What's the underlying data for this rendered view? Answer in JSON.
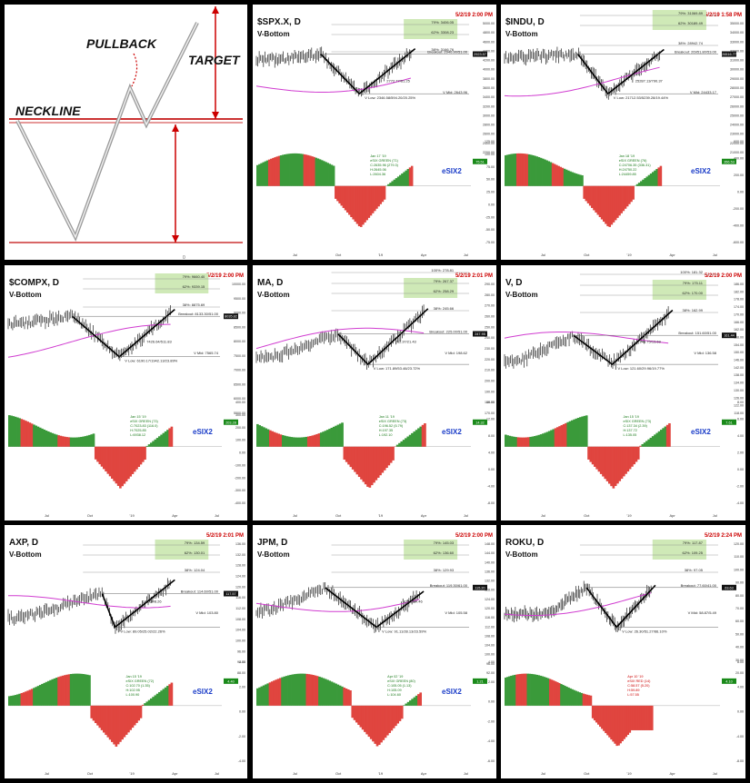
{
  "diagram": {
    "pullback_label": "PULLBACK",
    "neckline_label": "NECKLINE",
    "target_label": "TARGET",
    "bottom_mark": "0"
  },
  "charts": [
    {
      "ticker": "$SPX.X, D",
      "date_stamp": "5/2/19 2:00 PM",
      "pattern": "V-Bottom",
      "osc_label": "eSIX2",
      "levels": {
        "r79": "79%: 3406.05",
        "r62": "62%: 3308.23",
        "r38": "38%: 3166.76",
        "breakout": "Breakout: 2940.90/51.00",
        "l3": "2772.77/61.25",
        "vmid": "V Mid: 2643.96",
        "low": "V Low: 2346.58/594.20/20.25%"
      },
      "note": [
        "Jan 17 '19",
        "eSIX GREEN (71)",
        "C:2635.96 (279.3)",
        "H:2645.06",
        "L:2604.36"
      ],
      "price": "2923.57",
      "price_right": "75.51",
      "yticks": [
        "5000.00",
        "4800.00",
        "4600.00",
        "4400.00",
        "4200.00",
        "4000.00",
        "3800.00",
        "3600.00",
        "3400.00",
        "3200.00",
        "3000.00",
        "2800.00",
        "2600.00",
        "2400.00",
        "2200.00"
      ],
      "osc_ticks": [
        "125.00",
        "100.00",
        "75.00",
        "50.00",
        "25.00",
        "0.00",
        "-25.00",
        "-50.00",
        "-75.00"
      ],
      "xticks": [
        "Jul",
        "Oct",
        "'19",
        "Apr",
        "Jul"
      ]
    },
    {
      "ticker": "$INDU, D",
      "date_stamp": "5/2/19 1:58 PM",
      "pattern": "V-Bottom",
      "osc_label": "eSIX2",
      "levels": {
        "r79": "79%: 31069.89",
        "r62": "62%: 30189.49",
        "r38": "38%: 28942.74",
        "breakout": "Breakout: 26951.80/53.00",
        "l3": "25287.13/790.37",
        "vmid": "V Mid: 24433.17",
        "low": "V Low: 21712.53/5239.28/19.44%"
      },
      "note": [
        "Jan 18 '19",
        "eSIX GREEN (76)",
        "C:24706.35 (336.31)",
        "H:24750.22",
        "L:24459.85"
      ],
      "price": "26516.77",
      "price_right": "356.53",
      "yticks": [
        "35000.00",
        "34000.00",
        "33000.00",
        "32000.00",
        "31000.00",
        "30000.00",
        "29000.00",
        "28000.00",
        "27000.00",
        "26000.00",
        "25000.00",
        "24000.00",
        "23000.00",
        "22000.00",
        "21000.00"
      ],
      "osc_ticks": [
        "600.00",
        "400.00",
        "200.00",
        "0.00",
        "-200.00",
        "-400.00",
        "-600.00"
      ],
      "xticks": [
        "Jul",
        "Oct",
        "'19",
        "Apr",
        "Jul"
      ]
    },
    {
      "ticker": "$COMPX, D",
      "date_stamp": "5/2/19 2:00 PM",
      "pattern": "V-Bottom",
      "osc_label": "eSIX2",
      "levels": {
        "r79": "79%: 9660.40",
        "r62": "62%: 9339.15",
        "r38": "38%: 8875.69",
        "breakout": "Breakout: 8133.30/51.00",
        "l3": "7426.64/511.83",
        "vmid": "V Mid: 7565.74",
        "low": "V Low: 6190.17/1942.13/23.89%"
      },
      "note": [
        "Jan 15 '19",
        "eSIX GREEN (73)",
        "C:7023.83 (116.0)",
        "H:7025.85",
        "L:6938.12"
      ],
      "price": "8035.82",
      "price_right": "203.28",
      "yticks": [
        "10000.00",
        "9500.00",
        "9000.00",
        "8500.00",
        "8000.00",
        "7500.00",
        "7000.00",
        "6500.00",
        "6000.00",
        "5500.00"
      ],
      "osc_ticks": [
        "400.00",
        "300.00",
        "200.00",
        "100.00",
        "0.00",
        "-100.00",
        "-200.00",
        "-300.00",
        "-400.00"
      ],
      "xticks": [
        "Jul",
        "Oct",
        "'19",
        "Apr",
        "Jul"
      ]
    },
    {
      "ticker": "MA, D",
      "date_stamp": "5/2/19 2:01 PM",
      "pattern": "V-Bottom",
      "osc_label": "eSIX2",
      "levels": {
        "r100": "100%: 278.81",
        "r79": "79%: 267.37",
        "r62": "62%: 258.29",
        "r38": "38%: 245.66",
        "breakout": "Breakout: 225.00/51.00",
        "l3": "211.37/21.43",
        "vmid": "V Mid: 198.62",
        "low": "V Low: 171.89/53.46/23.72%"
      },
      "note": [
        "Jan 11 '19",
        "eSIX GREEN (73)",
        "C:196.52 (5.79)",
        "H:197.35",
        "L:192.10"
      ],
      "price": "247.95",
      "price_right": "14.32",
      "yticks": [
        "290.00",
        "280.00",
        "270.00",
        "260.00",
        "250.00",
        "240.00",
        "230.00",
        "220.00",
        "210.00",
        "200.00",
        "190.00",
        "180.00",
        "170.00"
      ],
      "osc_ticks": [
        "16.00",
        "12.00",
        "8.00",
        "4.00",
        "0.00",
        "-4.00",
        "-8.00"
      ],
      "xticks": [
        "Jul",
        "Oct",
        "'19",
        "Apr",
        "Jul"
      ]
    },
    {
      "ticker": "V, D",
      "date_stamp": "5/2/19 2:00 PM",
      "pattern": "V-Bottom",
      "osc_label": "eSIX2",
      "levels": {
        "r100": "100%: 181.32",
        "r79": "79%: 175.11",
        "r62": "62%: 170.00",
        "r38": "38%: 162.99",
        "breakout": "Breakout: 151.60/51.00",
        "l3": "143.75/13.69",
        "vmid": "V Mid: 136.58",
        "low": "V Low: 121.60/29.96/19.77%"
      },
      "note": [
        "Jan 15 '19",
        "eSIX GREEN (73)",
        "C:137.34 (2.39)",
        "H:137.72",
        "L:135.05"
      ],
      "price": "161.44",
      "price_right": "7.61",
      "yticks": [
        "186.00",
        "182.00",
        "178.00",
        "174.00",
        "170.00",
        "166.00",
        "162.00",
        "158.00",
        "154.00",
        "150.00",
        "146.00",
        "142.00",
        "138.00",
        "134.00",
        "130.00",
        "126.00",
        "122.00",
        "118.00"
      ],
      "osc_ticks": [
        "8.00",
        "6.00",
        "4.00",
        "2.00",
        "0.00",
        "-2.00",
        "-4.00"
      ],
      "xticks": [
        "Jul",
        "Oct",
        "'19",
        "Apr",
        "Jul"
      ]
    },
    {
      "ticker": "AXP, D",
      "date_stamp": "5/2/19 2:01 PM",
      "pattern": "V-Bottom",
      "osc_label": "eSIX2",
      "levels": {
        "r79": "79%: 134.59",
        "r62": "62%: 130.01",
        "r38": "38%: 124.04",
        "breakout": "Breakout: 114.60/51.00",
        "l3": "105.69/8.26",
        "vmid": "V Mid: 103.80",
        "low": "V Low: 89.05/25.02/22.26%"
      },
      "note": [
        "Jan 15 '19",
        "eSIX GREEN (72)",
        "C:102.70 (1.35)",
        "H:102.95",
        "L:100.90"
      ],
      "price": "117.57",
      "price_right": "4.40",
      "yticks": [
        "136.00",
        "132.00",
        "128.00",
        "124.00",
        "120.00",
        "116.00",
        "112.00",
        "108.00",
        "104.00",
        "100.00",
        "96.00",
        "92.00",
        "88.00"
      ],
      "osc_ticks": [
        "4.00",
        "2.00",
        "0.00",
        "-2.00",
        "-4.00"
      ],
      "xticks": [
        "Jul",
        "Oct",
        "'19",
        "Apr",
        "Jul"
      ]
    },
    {
      "ticker": "JPM, D",
      "date_stamp": "5/2/19 2:00 PM",
      "pattern": "V-Bottom",
      "osc_label": "eSIX2",
      "levels": {
        "r79": "79%: 145.03",
        "r62": "62%: 136.60",
        "r38": "38%: 129.93",
        "breakout": "Breakout: 119.30/61.00",
        "l3": "111.35/4.46",
        "vmid": "V Mid: 105.58",
        "low": "V Low: 91.11/28.13/23.59%"
      },
      "note": [
        "Apr 02 '19",
        "eSIX GREEN (80)",
        "C:105.05 (1.13)",
        "H:105.09",
        "L:104.60"
      ],
      "price": "115.20",
      "price_right": "1.21",
      "yticks": [
        "148.00",
        "144.00",
        "140.00",
        "136.00",
        "132.00",
        "128.00",
        "124.00",
        "120.00",
        "116.00",
        "112.00",
        "108.00",
        "104.00",
        "100.00",
        "96.00",
        "92.00"
      ],
      "osc_ticks": [
        "4.00",
        "2.00",
        "0.00",
        "-2.00",
        "-4.00",
        "-6.00"
      ],
      "xticks": [
        "Jul",
        "Oct",
        "'19",
        "Apr",
        "Jul"
      ]
    },
    {
      "ticker": "ROKU, D",
      "date_stamp": "5/2/19 2:24 PM",
      "pattern": "V-Bottom",
      "osc_label": "",
      "levels": {
        "r79": "79%: 117.87",
        "r62": "62%: 109.25",
        "r38": "38%: 97.05",
        "breakout": "Breakout: 77.60/41.00",
        "l3": "",
        "vmid": "V Mid: 58.87/5.49",
        "low": "V Low: 26.30/51.27/66.10%"
      },
      "note": [
        "Apr 10 '19",
        "eSIX RED (14)",
        "C:58.57 (5.20)",
        "H:59.89",
        "L:57.55"
      ],
      "price": "63.63",
      "price_right": "4.10",
      "yticks": [
        "120.00",
        "110.00",
        "100.00",
        "90.00",
        "80.00",
        "70.00",
        "60.00",
        "50.00",
        "40.00",
        "30.00",
        "20.00"
      ],
      "osc_ticks": [
        "8.00",
        "4.00",
        "0.00",
        "-4.00",
        "-8.00"
      ],
      "xticks": [
        "Jul",
        "Oct",
        "'19",
        "Apr",
        "Jul"
      ]
    }
  ]
}
